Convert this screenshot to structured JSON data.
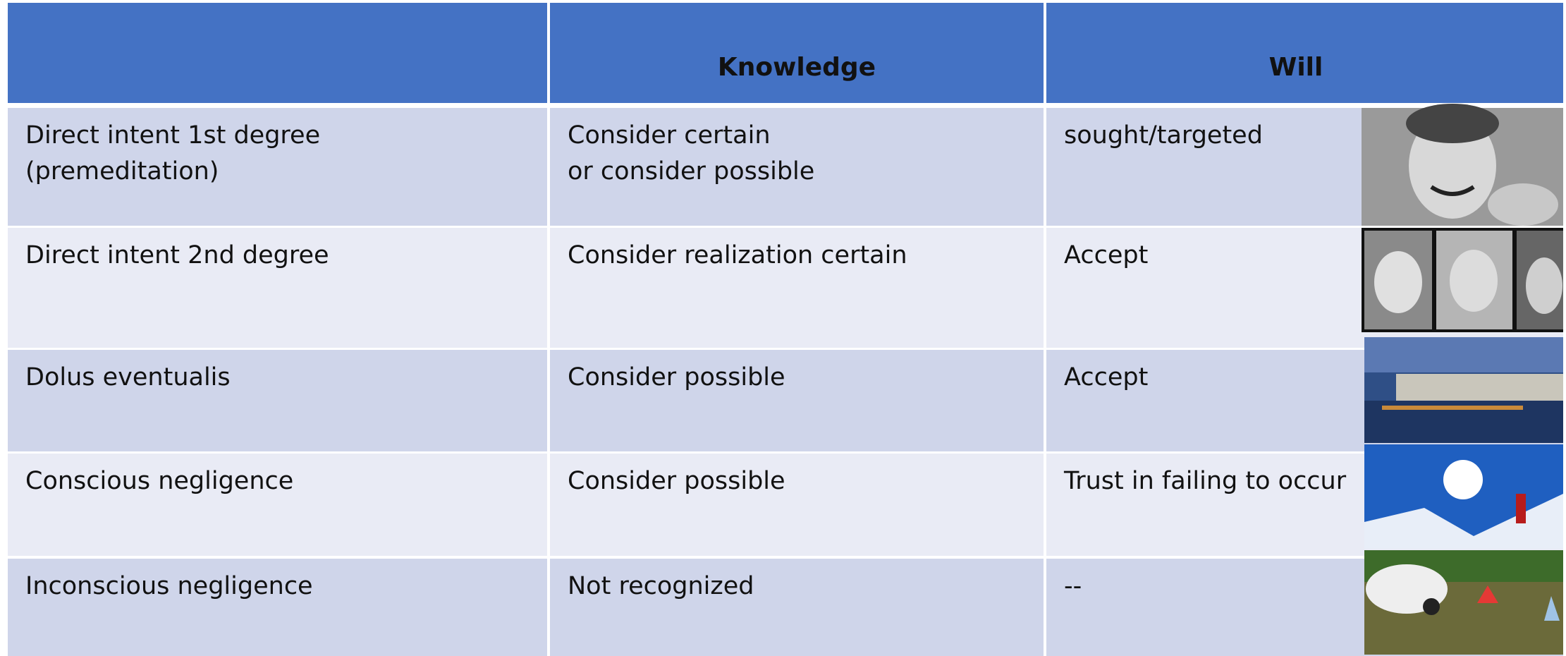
{
  "table": {
    "header": [
      "Knowledge",
      "Will"
    ],
    "rows": [
      [
        [
          "Direct intent 1st degree",
          "(premeditation)"
        ],
        [
          "Consider certain",
          "or consider possible"
        ],
        [
          "sought/targeted"
        ]
      ],
      [
        [
          "Direct intent 2nd degree"
        ],
        [
          "Consider realization certain"
        ],
        [
          "Accept"
        ]
      ],
      [
        [
          "Dolus eventualis"
        ],
        [
          "Consider possible"
        ],
        [
          "Accept"
        ]
      ],
      [
        [
          "Conscious negligence"
        ],
        [
          "Consider possible"
        ],
        [
          "Trust in failing to occur"
        ]
      ],
      [
        [
          "Inconscious negligence"
        ],
        [
          "Not recognized"
        ],
        [
          "--"
        ]
      ]
    ]
  }
}
